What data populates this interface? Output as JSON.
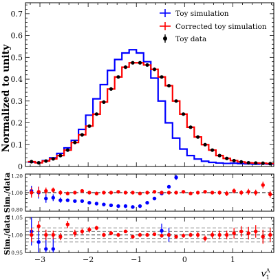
{
  "chart_data": [
    {
      "type": "step-histogram",
      "panel": "main",
      "ylabel": "Normalized to unity",
      "ylim": [
        0,
        0.75
      ],
      "yticks": [
        "0",
        "0.1",
        "0.2",
        "0.3",
        "0.4",
        "0.5",
        "0.6",
        "0.7"
      ],
      "xlim": [
        -3.3,
        1.85
      ],
      "bin_edges": [
        -3.25,
        -3.1,
        -2.95,
        -2.8,
        -2.65,
        -2.5,
        -2.35,
        -2.2,
        -2.05,
        -1.9,
        -1.75,
        -1.6,
        -1.45,
        -1.3,
        -1.15,
        -1.0,
        -0.85,
        -0.7,
        -0.55,
        -0.4,
        -0.25,
        -0.1,
        0.05,
        0.2,
        0.35,
        0.5,
        0.65,
        0.8,
        0.95,
        1.1,
        1.25,
        1.4,
        1.55,
        1.7,
        1.85
      ],
      "legend": {
        "placement": "top-right",
        "entries": [
          "Toy simulation",
          "Corrected toy simulation",
          "Toy data"
        ]
      },
      "series": [
        {
          "name": "Toy simulation",
          "color": "#0000ff",
          "values": [
            0.02,
            0.018,
            0.027,
            0.04,
            0.06,
            0.085,
            0.12,
            0.17,
            0.235,
            0.31,
            0.375,
            0.44,
            0.49,
            0.52,
            0.535,
            0.52,
            0.48,
            0.405,
            0.3,
            0.2,
            0.13,
            0.08,
            0.05,
            0.034,
            0.024,
            0.019,
            0.016,
            0.014,
            0.015,
            0.013,
            0.012,
            0.011,
            0.012,
            0.011
          ]
        },
        {
          "name": "Corrected toy simulation",
          "color": "#ff0000",
          "values": [
            0.022,
            0.017,
            0.025,
            0.035,
            0.05,
            0.075,
            0.11,
            0.145,
            0.185,
            0.24,
            0.295,
            0.355,
            0.41,
            0.455,
            0.475,
            0.475,
            0.465,
            0.445,
            0.41,
            0.37,
            0.3,
            0.24,
            0.18,
            0.135,
            0.1,
            0.075,
            0.05,
            0.037,
            0.027,
            0.021,
            0.017,
            0.016,
            0.015,
            0.013
          ]
        },
        {
          "name": "Toy data",
          "color": "#000000",
          "values": [
            0.022,
            0.017,
            0.025,
            0.035,
            0.05,
            0.075,
            0.11,
            0.145,
            0.185,
            0.24,
            0.295,
            0.355,
            0.41,
            0.455,
            0.475,
            0.475,
            0.465,
            0.445,
            0.41,
            0.37,
            0.3,
            0.24,
            0.18,
            0.135,
            0.1,
            0.075,
            0.05,
            0.037,
            0.027,
            0.021,
            0.017,
            0.016,
            0.015,
            0.013
          ]
        }
      ]
    },
    {
      "type": "scatter-errorbar",
      "panel": "ratio-1",
      "ylabel": "Sim./data",
      "ylim": [
        0.78,
        1.22
      ],
      "yticks": [
        "0.80",
        "1.00",
        "1.20"
      ],
      "reference_line": 1.0,
      "series": [
        {
          "name": "Toy simulation",
          "color": "#0000ff",
          "x": [
            -3.175,
            -3.025,
            -2.875,
            -2.725,
            -2.575,
            -2.425,
            -2.275,
            -2.125,
            -1.975,
            -1.825,
            -1.675,
            -1.525,
            -1.375,
            -1.225,
            -1.075,
            -0.925,
            -0.775,
            -0.625,
            -0.475,
            -0.325,
            -0.175
          ],
          "y": [
            1.02,
            1.0,
            0.93,
            0.94,
            0.91,
            0.91,
            0.9,
            0.9,
            0.88,
            0.87,
            0.86,
            0.85,
            0.84,
            0.84,
            0.83,
            0.84,
            0.88,
            0.93,
            0.99,
            1.07,
            1.18
          ],
          "err": [
            0.06,
            0.07,
            0.05,
            0.04,
            0.03,
            0.02,
            0.02,
            0.02,
            0.015,
            0.015,
            0.01,
            0.01,
            0.01,
            0.01,
            0.01,
            0.01,
            0.01,
            0.015,
            0.02,
            0.02,
            0.03
          ]
        },
        {
          "name": "Corrected toy simulation",
          "color": "#ff0000",
          "x": [
            -3.175,
            -3.025,
            -2.875,
            -2.725,
            -2.575,
            -2.425,
            -2.275,
            -2.125,
            -1.975,
            -1.825,
            -1.675,
            -1.525,
            -1.375,
            -1.225,
            -1.075,
            -0.925,
            -0.775,
            -0.625,
            -0.475,
            -0.325,
            -0.175,
            -0.025,
            0.125,
            0.275,
            0.425,
            0.575,
            0.725,
            0.875,
            1.025,
            1.175,
            1.325,
            1.475,
            1.625,
            1.775
          ],
          "y": [
            1.0,
            1.01,
            1.02,
            1.03,
            1.0,
            0.99,
            1.0,
            1.02,
            1.0,
            0.99,
            1.0,
            1.0,
            1.01,
            1.0,
            1.0,
            0.99,
            1.0,
            1.01,
            1.0,
            1.0,
            1.0,
            1.01,
            0.99,
            1.0,
            1.01,
            1.0,
            1.0,
            0.99,
            1.02,
            1.0,
            1.01,
            1.0,
            1.09,
            0.98
          ],
          "err": [
            0.06,
            0.06,
            0.04,
            0.03,
            0.03,
            0.02,
            0.02,
            0.015,
            0.015,
            0.01,
            0.01,
            0.01,
            0.01,
            0.01,
            0.01,
            0.01,
            0.01,
            0.01,
            0.01,
            0.01,
            0.01,
            0.015,
            0.015,
            0.02,
            0.02,
            0.02,
            0.025,
            0.03,
            0.03,
            0.03,
            0.035,
            0.035,
            0.04,
            0.04
          ]
        }
      ]
    },
    {
      "type": "scatter-errorbar",
      "panel": "ratio-2",
      "ylabel": "Sim./data",
      "xlabel": "v_1^Λ",
      "ylim": [
        0.95,
        1.05
      ],
      "yticks": [
        "0.95",
        "1.00",
        "1.05"
      ],
      "xticks": [
        "−3",
        "−2",
        "−1",
        "0",
        "1"
      ],
      "reference_line": 1.0,
      "band_lines": [
        0.98,
        0.99,
        1.01,
        1.02
      ],
      "series": [
        {
          "name": "Toy simulation",
          "color": "#0000ff",
          "x": [
            -3.175,
            -3.025,
            -2.875,
            -2.725,
            -0.475,
            -0.325
          ],
          "y": [
            1.01,
            0.98,
            0.96,
            0.96,
            1.012,
            1.0
          ],
          "err": [
            0.04,
            0.05,
            0.04,
            0.04,
            0.02,
            0.02
          ]
        },
        {
          "name": "Corrected toy simulation",
          "color": "#ff0000",
          "x": [
            -3.175,
            -3.025,
            -2.875,
            -2.725,
            -2.575,
            -2.425,
            -2.275,
            -2.125,
            -1.975,
            -1.825,
            -1.675,
            -1.525,
            -1.375,
            -1.225,
            -1.075,
            -0.925,
            -0.775,
            -0.625,
            -0.475,
            -0.325,
            -0.175,
            -0.025,
            0.125,
            0.275,
            0.425,
            0.575,
            0.725,
            0.875,
            1.025,
            1.175,
            1.325,
            1.475,
            1.625,
            1.775
          ],
          "y": [
            1.0,
            1.025,
            1.0,
            1.0,
            0.995,
            1.03,
            1.005,
            1.01,
            1.015,
            1.02,
            1.0,
            1.005,
            1.0,
            1.01,
            0.995,
            1.0,
            1.0,
            1.002,
            0.998,
            1.0,
            0.995,
            0.998,
            1.0,
            1.0,
            0.99,
            1.0,
            1.0,
            1.0,
            1.005,
            1.01,
            1.005,
            1.01,
            0.995,
            1.0
          ],
          "err": [
            0.02,
            0.015,
            0.015,
            0.012,
            0.01,
            0.01,
            0.01,
            0.008,
            0.008,
            0.006,
            0.006,
            0.006,
            0.005,
            0.005,
            0.005,
            0.005,
            0.005,
            0.005,
            0.005,
            0.005,
            0.005,
            0.006,
            0.006,
            0.008,
            0.008,
            0.01,
            0.012,
            0.012,
            0.015,
            0.015,
            0.018,
            0.018,
            0.02,
            0.02
          ]
        }
      ]
    }
  ]
}
